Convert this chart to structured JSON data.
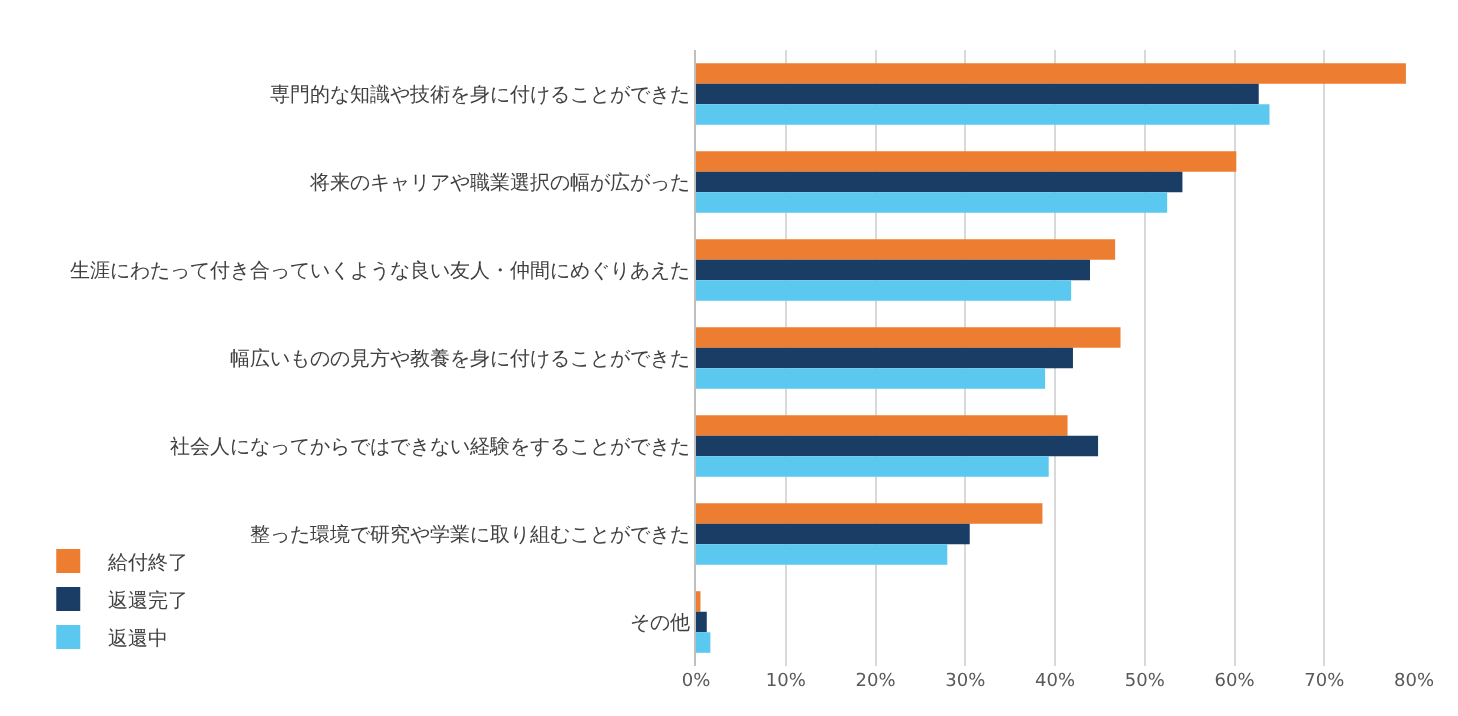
{
  "chart_data": {
    "type": "bar",
    "orientation": "horizontal",
    "categories": [
      "専門的な知識や技術を身に付けることができた",
      "将来のキャリアや職業選択の幅が広がった",
      "生涯にわたって付き合っていくような良い友人・仲間にめぐりあえた",
      "幅広いものの見方や教養を身に付けることができた",
      "社会人になってからではできない経験をすることができた",
      "整った環境で研究や学業に取り組むことができた",
      "その他"
    ],
    "series": [
      {
        "name": "給付終了",
        "color": "#ed7d31",
        "values": [
          79.1,
          60.2,
          46.7,
          47.3,
          41.4,
          38.6,
          0.5
        ]
      },
      {
        "name": "返還完了",
        "color": "#1a3d66",
        "values": [
          62.7,
          54.2,
          43.9,
          42.0,
          44.8,
          30.5,
          1.2
        ]
      },
      {
        "name": "返還中",
        "color": "#5bc8f0",
        "values": [
          63.9,
          52.5,
          41.8,
          38.9,
          39.3,
          28.0,
          1.6
        ]
      }
    ],
    "xlim": [
      0,
      80
    ],
    "xticks": [
      {
        "value": 0,
        "label": "0%"
      },
      {
        "value": 10,
        "label": "10%"
      },
      {
        "value": 20,
        "label": "20%"
      },
      {
        "value": 30,
        "label": "30%"
      },
      {
        "value": 40,
        "label": "40%"
      },
      {
        "value": 50,
        "label": "50%"
      },
      {
        "value": 60,
        "label": "60%"
      },
      {
        "value": 70,
        "label": "70%"
      },
      {
        "value": 80,
        "label": "80%"
      }
    ],
    "grid": "x",
    "legend": "bottom left"
  }
}
